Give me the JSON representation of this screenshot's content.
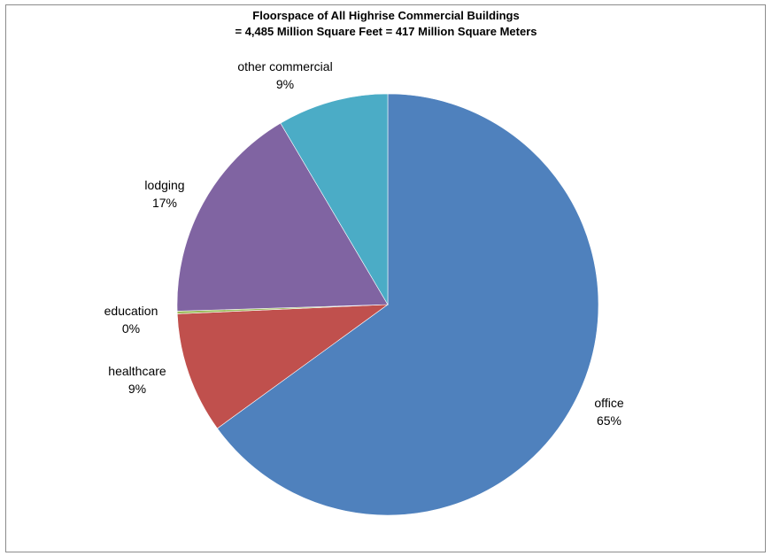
{
  "chart_data": {
    "type": "pie",
    "title": "Floorspace of All Highrise Commercial Buildings",
    "subtitle": "= 4,485 Million Square Feet = 417 Million Square Meters",
    "slices": [
      {
        "name": "office",
        "value": 65,
        "label": "65%",
        "color": "#4f81bd"
      },
      {
        "name": "healthcare",
        "value": 9.3,
        "label": "9%",
        "color": "#c0504d"
      },
      {
        "name": "education",
        "value": 0.2,
        "label": "0%",
        "color": "#9bbb59"
      },
      {
        "name": "lodging",
        "value": 17,
        "label": "17%",
        "color": "#8064a2"
      },
      {
        "name": "other commercial",
        "value": 8.5,
        "label": "9%",
        "color": "#4bacc6"
      }
    ],
    "start": "12 o'clock",
    "direction": "clockwise",
    "legend": "none"
  }
}
